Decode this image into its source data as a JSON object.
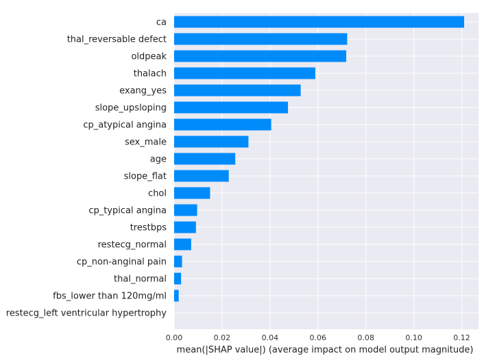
{
  "chart_data": {
    "type": "bar",
    "orientation": "horizontal",
    "categories": [
      "ca",
      "thal_reversable defect",
      "oldpeak",
      "thalach",
      "exang_yes",
      "slope_upsloping",
      "cp_atypical angina",
      "sex_male",
      "age",
      "slope_flat",
      "chol",
      "cp_typical angina",
      "trestbps",
      "restecg_normal",
      "cp_non-anginal pain",
      "thal_normal",
      "fbs_lower than 120mg/ml",
      "restecg_left ventricular hypertrophy"
    ],
    "values": [
      0.121,
      0.0722,
      0.0718,
      0.0589,
      0.0528,
      0.0475,
      0.0405,
      0.031,
      0.0255,
      0.0228,
      0.015,
      0.0096,
      0.0091,
      0.0071,
      0.0033,
      0.0029,
      0.0019,
      0.0
    ],
    "xlabel": "mean(|SHAP value|) (average impact on model output magnitude)",
    "ylabel": "",
    "title": "",
    "xlim": [
      0,
      0.127
    ],
    "xticks": [
      "0.00",
      "0.02",
      "0.04",
      "0.06",
      "0.08",
      "0.10",
      "0.12"
    ],
    "xtick_values": [
      0,
      0.02,
      0.04,
      0.06,
      0.08,
      0.1,
      0.12
    ],
    "grid": true,
    "bar_color": "#008bfb",
    "background_color": "#eaeaf2",
    "grid_color": "#ffffff"
  }
}
